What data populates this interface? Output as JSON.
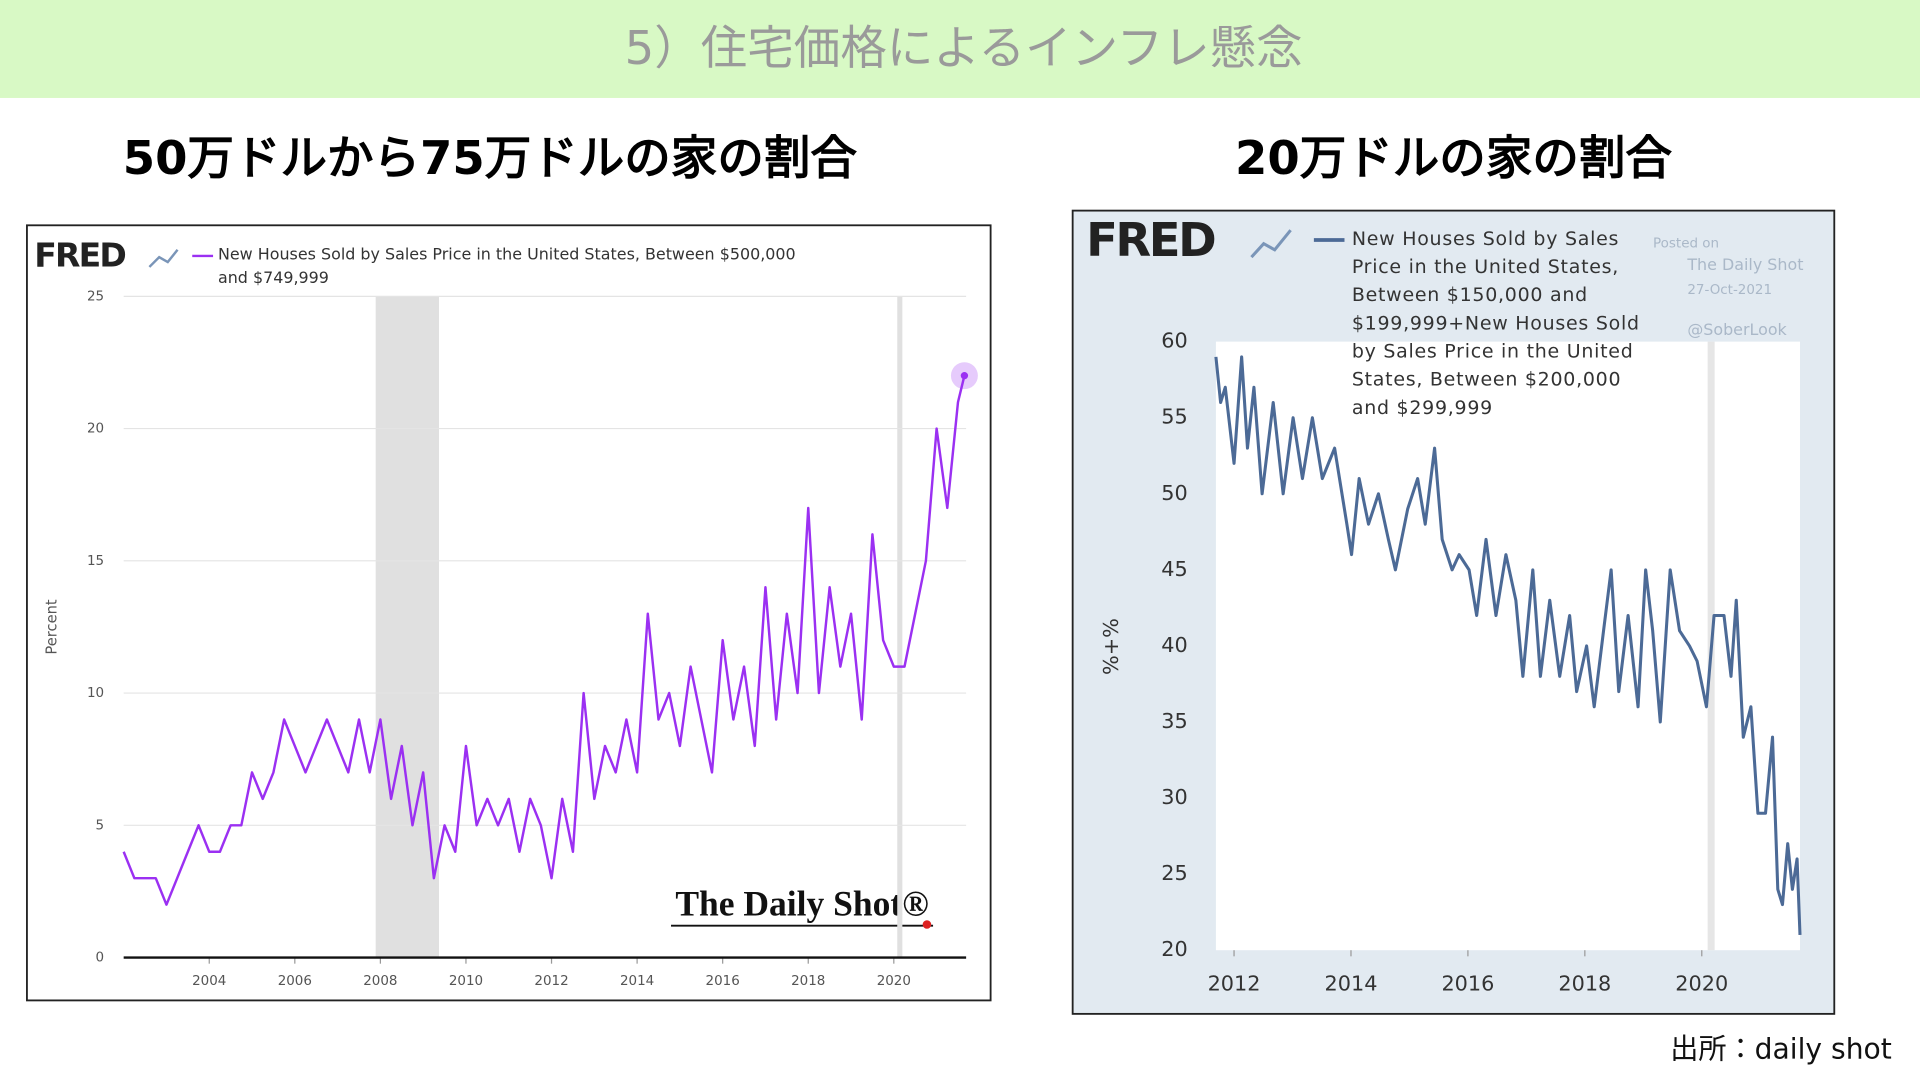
{
  "header": {
    "title": "5）住宅価格によるインフレ懸念"
  },
  "source": "出所：daily shot",
  "chart_data": [
    {
      "type": "line",
      "title": "50万ドルから75万ドルの家の割合",
      "logo": "FRED",
      "watermark": "The Daily Shot®",
      "ylabel": "Percent",
      "x": [
        2002,
        2002.25,
        2002.5,
        2002.75,
        2003,
        2003.25,
        2003.5,
        2003.75,
        2004,
        2004.25,
        2004.5,
        2004.75,
        2005,
        2005.25,
        2005.5,
        2005.75,
        2006,
        2006.25,
        2006.5,
        2006.75,
        2007,
        2007.25,
        2007.5,
        2007.75,
        2008,
        2008.25,
        2008.5,
        2008.75,
        2009,
        2009.25,
        2009.5,
        2009.75,
        2010,
        2010.25,
        2010.5,
        2010.75,
        2011,
        2011.25,
        2011.5,
        2011.75,
        2012,
        2012.25,
        2012.5,
        2012.75,
        2013,
        2013.25,
        2013.5,
        2013.75,
        2014,
        2014.25,
        2014.5,
        2014.75,
        2015,
        2015.25,
        2015.5,
        2015.75,
        2016,
        2016.25,
        2016.5,
        2016.75,
        2017,
        2017.25,
        2017.5,
        2017.75,
        2018,
        2018.25,
        2018.5,
        2018.75,
        2019,
        2019.25,
        2019.5,
        2019.75,
        2020,
        2020.25,
        2020.5,
        2020.75,
        2021,
        2021.25,
        2021.5,
        2021.65
      ],
      "series": [
        {
          "name": "New Houses Sold by Sales Price in the United States, Between $500,000 and $749,999",
          "color": "#9b30f2",
          "values": [
            4,
            3,
            3,
            3,
            2,
            3,
            4,
            5,
            4,
            4,
            5,
            5,
            7,
            6,
            7,
            9,
            8,
            7,
            8,
            9,
            8,
            7,
            9,
            7,
            9,
            6,
            8,
            5,
            7,
            3,
            5,
            4,
            8,
            5,
            6,
            5,
            6,
            4,
            6,
            5,
            3,
            6,
            4,
            10,
            6,
            8,
            7,
            9,
            7,
            13,
            9,
            10,
            8,
            11,
            9,
            7,
            12,
            9,
            11,
            8,
            14,
            9,
            13,
            10,
            17,
            10,
            14,
            11,
            13,
            9,
            16,
            12,
            11,
            11,
            13,
            15,
            20,
            17,
            21,
            22
          ]
        }
      ],
      "xlim": [
        2002,
        2021.69
      ],
      "xticks": [
        2004,
        2006,
        2008,
        2010,
        2012,
        2014,
        2016,
        2018,
        2020
      ],
      "ylim": [
        0,
        25
      ],
      "yticks": [
        0,
        5,
        10,
        15,
        20,
        25
      ],
      "grid": true,
      "end_marker": true,
      "recessions": [
        [
          2007.89,
          2009.37
        ],
        [
          2020.08,
          2020.2
        ]
      ]
    },
    {
      "type": "line",
      "title": "20万ドルの家の割合",
      "logo": "FRED",
      "ylabel": "%+%",
      "posted_on": "Posted on",
      "posted_by": "The Daily Shot",
      "date": "27-Oct-2021",
      "handle": "@SoberLook",
      "x": [
        2011.69,
        2011.77,
        2011.85,
        2012,
        2012.13,
        2012.23,
        2012.34,
        2012.48,
        2012.67,
        2012.84,
        2013.01,
        2013.17,
        2013.34,
        2013.51,
        2013.72,
        2013.93,
        2014.01,
        2014.14,
        2014.3,
        2014.47,
        2014.64,
        2014.76,
        2014.97,
        2015.14,
        2015.27,
        2015.43,
        2015.56,
        2015.73,
        2015.85,
        2016.02,
        2016.15,
        2016.31,
        2016.48,
        2016.65,
        2016.82,
        2016.94,
        2017.11,
        2017.24,
        2017.4,
        2017.57,
        2017.74,
        2017.86,
        2018.03,
        2018.16,
        2018.32,
        2018.45,
        2018.58,
        2018.74,
        2018.91,
        2019.04,
        2019.16,
        2019.29,
        2019.46,
        2019.62,
        2019.79,
        2019.92,
        2020.08,
        2020.21,
        2020.38,
        2020.5,
        2020.59,
        2020.71,
        2020.84,
        2020.96,
        2021.09,
        2021.21,
        2021.3,
        2021.38,
        2021.47,
        2021.55,
        2021.63,
        2021.68
      ],
      "series": [
        {
          "name": "New Houses Sold by Sales Price in the United States, Between $150,000 and $199,999+New Houses Sold by Sales Price in the United States, Between $200,000 and $299,999",
          "color": "#4c6a96",
          "values": [
            59,
            56,
            57,
            52,
            59,
            53,
            57,
            50,
            56,
            50,
            55,
            51,
            55,
            51,
            53,
            48,
            46,
            51,
            48,
            50,
            47,
            45,
            49,
            51,
            48,
            53,
            47,
            45,
            46,
            45,
            42,
            47,
            42,
            46,
            43,
            38,
            45,
            38,
            43,
            38,
            42,
            37,
            40,
            36,
            41,
            45,
            37,
            42,
            36,
            45,
            41,
            35,
            45,
            41,
            40,
            39,
            36,
            42,
            42,
            38,
            43,
            34,
            36,
            29,
            29,
            34,
            24,
            23,
            27,
            24,
            26,
            21
          ]
        }
      ],
      "xlim": [
        2011.69,
        2021.68
      ],
      "xticks": [
        2012,
        2014,
        2016,
        2018,
        2020
      ],
      "ylim": [
        20,
        60
      ],
      "yticks": [
        20,
        25,
        30,
        35,
        40,
        45,
        50,
        55,
        60
      ],
      "grid": false,
      "end_marker": false,
      "recessions": [
        [
          2020.1,
          2020.22
        ]
      ]
    }
  ]
}
